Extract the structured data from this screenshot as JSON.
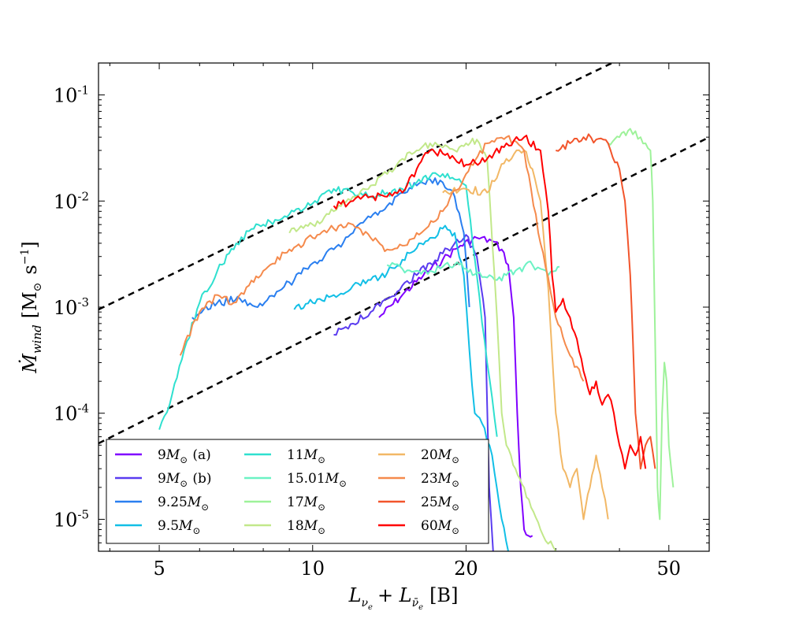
{
  "chart_data": {
    "type": "line",
    "title": "",
    "xlabel": "L_{ν_e} + L_{ν̄_e} [B]",
    "xlabel_parts": {
      "main": "L",
      "sub1": "ν",
      "sub1b": "e",
      "plus": "+ L",
      "sub2": "ν̄",
      "sub2b": "e",
      "unit": "[B]"
    },
    "ylabel": "Ṁ_wind [M_⊙ s^-1]",
    "ylabel_parts": {
      "main": "Ṁ",
      "sub": "wind",
      "unit_open": "[M",
      "sun": "⊙",
      "s": "s",
      "exp": "−1",
      "close": "]"
    },
    "xscale": "log",
    "yscale": "log",
    "xlim": [
      3.8,
      60
    ],
    "ylim": [
      5e-06,
      0.2
    ],
    "xticks": [
      {
        "value": 5,
        "label": "5"
      },
      {
        "value": 10,
        "label": "10"
      },
      {
        "value": 20,
        "label": "20"
      },
      {
        "value": 50,
        "label": "50"
      }
    ],
    "yticks": [
      {
        "value": 1e-05,
        "base": "10",
        "exp": "-5"
      },
      {
        "value": 0.0001,
        "base": "10",
        "exp": "-4"
      },
      {
        "value": 0.001,
        "base": "10",
        "exp": "-3"
      },
      {
        "value": 0.01,
        "base": "10",
        "exp": "-2"
      },
      {
        "value": 0.1,
        "base": "10",
        "exp": "-1"
      }
    ],
    "reference_lines": [
      {
        "style": "dashed",
        "color": "#000000",
        "x": [
          3.8,
          60
        ],
        "y": [
          0.00095,
          0.55
        ]
      },
      {
        "style": "dashed",
        "color": "#000000",
        "x": [
          3.8,
          60
        ],
        "y": [
          5.2e-05,
          0.04
        ]
      }
    ],
    "series": [
      {
        "name": "9M⊙ (a)",
        "label_main": "9",
        "label_star": "(a)",
        "color": "#8000ff",
        "x": [
          13.5,
          15,
          16.5,
          18,
          19.5,
          21,
          22.5,
          23.5,
          24.2,
          24.8,
          25.2,
          25.6,
          26.0,
          26.5,
          27.0
        ],
        "y": [
          0.0008,
          0.0013,
          0.002,
          0.0028,
          0.0038,
          0.0045,
          0.0042,
          0.0035,
          0.0025,
          0.0008,
          0.0001,
          2e-05,
          8e-06,
          7e-06,
          7e-06
        ]
      },
      {
        "name": "9M⊙ (b)",
        "label_main": "9",
        "label_star": "(b)",
        "color": "#5a3cf0",
        "x": [
          11,
          12,
          13,
          14,
          15,
          16,
          17,
          18,
          19,
          20,
          21,
          21.8,
          22.2,
          22.6
        ],
        "y": [
          0.00055,
          0.0007,
          0.0009,
          0.0012,
          0.0016,
          0.002,
          0.0026,
          0.0032,
          0.004,
          0.0048,
          0.003,
          0.0008,
          2e-05,
          5e-06
        ]
      },
      {
        "name": "9.25M⊙",
        "label_main": "9.25",
        "label_star": "",
        "color": "#2a7ff0",
        "x": [
          5.8,
          6.5,
          7.2,
          7.8,
          8.5,
          9.2,
          10,
          11,
          12,
          13,
          14,
          15,
          16,
          17,
          18,
          19,
          19.8,
          20.3
        ],
        "y": [
          0.0008,
          0.0011,
          0.0012,
          0.001,
          0.0014,
          0.0018,
          0.0026,
          0.0035,
          0.005,
          0.007,
          0.009,
          0.012,
          0.014,
          0.016,
          0.015,
          0.011,
          0.005,
          0.001
        ]
      },
      {
        "name": "9.5M⊙",
        "label_main": "9.5",
        "label_star": "",
        "color": "#12bfe6",
        "x": [
          9.2,
          10,
          11,
          12,
          13,
          14,
          15,
          16,
          17,
          18,
          19,
          19.8,
          20.3,
          20.8,
          21.5,
          22.5,
          23.5,
          24.2
        ],
        "y": [
          0.00095,
          0.0011,
          0.0013,
          0.0016,
          0.0018,
          0.0021,
          0.0028,
          0.0036,
          0.0045,
          0.0055,
          0.005,
          0.002,
          0.0004,
          0.0001,
          8e-05,
          4e-05,
          1e-05,
          5e-06
        ]
      },
      {
        "name": "11M⊙",
        "label_main": "11",
        "label_star": "",
        "color": "#2fe0cf",
        "x": [
          5.0,
          5.3,
          5.6,
          6.0,
          6.5,
          7.0,
          7.5,
          8.0,
          9.0,
          10.0,
          11,
          12,
          13,
          14,
          15,
          16,
          17,
          18,
          19,
          20,
          21,
          22,
          23
        ],
        "y": [
          7e-05,
          0.00015,
          0.0004,
          0.0011,
          0.0022,
          0.0035,
          0.0052,
          0.006,
          0.0075,
          0.0095,
          0.013,
          0.012,
          0.011,
          0.012,
          0.013,
          0.015,
          0.017,
          0.018,
          0.016,
          0.014,
          0.002,
          0.0003,
          6e-05
        ]
      },
      {
        "name": "15.01M⊙",
        "label_main": "15.01",
        "label_star": "",
        "color": "#6cf2c4",
        "x": [
          14,
          15,
          16,
          17,
          18,
          19,
          20,
          21,
          22,
          23,
          24,
          25,
          26,
          27,
          28,
          29,
          30,
          30.5
        ],
        "y": [
          0.0025,
          0.0023,
          0.0022,
          0.0022,
          0.0024,
          0.0025,
          0.0023,
          0.0021,
          0.0019,
          0.0018,
          0.002,
          0.0022,
          0.0024,
          0.0025,
          0.0023,
          0.002,
          0.0022,
          0.0024
        ]
      },
      {
        "name": "17M⊙",
        "label_main": "17",
        "label_star": "",
        "color": "#9ef29a",
        "x": [
          38,
          40,
          42,
          44,
          45,
          46,
          46.5,
          47,
          47.5,
          48,
          48.5,
          49,
          49.5,
          50,
          51
        ],
        "y": [
          0.035,
          0.04,
          0.048,
          0.04,
          0.035,
          0.03,
          0.01,
          0.0005,
          2e-05,
          1e-05,
          0.0001,
          0.0003,
          0.0002,
          5e-05,
          2e-05
        ]
      },
      {
        "name": "18M⊙",
        "label_main": "18",
        "label_star": "",
        "color": "#c2e88a",
        "x": [
          9,
          10,
          11,
          12,
          13,
          14,
          15,
          16,
          17,
          18,
          19,
          20,
          21,
          22,
          23,
          23.5,
          24,
          25,
          26,
          28,
          30
        ],
        "y": [
          0.005,
          0.006,
          0.008,
          0.011,
          0.014,
          0.018,
          0.025,
          0.03,
          0.035,
          0.032,
          0.03,
          0.035,
          0.038,
          0.025,
          0.0008,
          0.0001,
          5e-05,
          3e-05,
          2e-05,
          8e-06,
          5e-06
        ]
      },
      {
        "name": "20M⊙",
        "label_main": "20",
        "label_star": "",
        "color": "#f2b866",
        "x": [
          18,
          20,
          22,
          24,
          26,
          27,
          28,
          29,
          30,
          31,
          32,
          33,
          34,
          35,
          36,
          37,
          38
        ],
        "y": [
          0.012,
          0.013,
          0.012,
          0.025,
          0.03,
          0.02,
          0.01,
          0.0015,
          0.0001,
          3e-05,
          2e-05,
          3e-05,
          1e-05,
          2e-05,
          4e-05,
          2e-05,
          1e-05
        ]
      },
      {
        "name": "23M⊙",
        "label_main": "23",
        "label_star": "",
        "color": "#f58a4c",
        "x": [
          5.5,
          6.0,
          6.5,
          7.0,
          7.5,
          8.0,
          9.0,
          10,
          11,
          12,
          13,
          14,
          15,
          16,
          18,
          20,
          22,
          24,
          26,
          28,
          30,
          32,
          34
        ],
        "y": [
          0.00035,
          0.0009,
          0.0013,
          0.0011,
          0.0016,
          0.0022,
          0.0035,
          0.0045,
          0.0055,
          0.006,
          0.0045,
          0.0035,
          0.0038,
          0.005,
          0.008,
          0.018,
          0.035,
          0.04,
          0.03,
          0.004,
          0.0008,
          0.00035,
          0.0002
        ]
      },
      {
        "name": "25M⊙",
        "label_main": "25",
        "label_star": "",
        "color": "#f2552c",
        "x": [
          30,
          32,
          34,
          36,
          38,
          40,
          41,
          42,
          42.5,
          43,
          44,
          45,
          46,
          47
        ],
        "y": [
          0.03,
          0.035,
          0.04,
          0.038,
          0.035,
          0.02,
          0.01,
          0.002,
          0.0005,
          0.0001,
          3e-05,
          5e-05,
          6e-05,
          3e-05
        ]
      },
      {
        "name": "60M⊙",
        "label_main": "60",
        "label_star": "",
        "color": "#ff0000",
        "x": [
          11,
          12,
          13,
          14,
          15,
          16,
          17,
          18,
          19,
          20,
          22,
          24,
          26,
          28,
          29,
          29.5,
          30,
          31,
          32,
          33,
          34,
          35,
          36,
          37,
          38,
          39,
          40,
          41,
          42,
          43,
          44,
          45
        ],
        "y": [
          0.009,
          0.01,
          0.011,
          0.011,
          0.012,
          0.02,
          0.03,
          0.028,
          0.025,
          0.022,
          0.025,
          0.035,
          0.04,
          0.03,
          0.008,
          0.002,
          0.0009,
          0.0012,
          0.0008,
          0.0005,
          0.00025,
          0.00015,
          0.0002,
          0.00012,
          0.00015,
          0.0001,
          5e-05,
          3e-05,
          5e-05,
          4e-05,
          6e-05,
          3e-05
        ]
      }
    ]
  }
}
